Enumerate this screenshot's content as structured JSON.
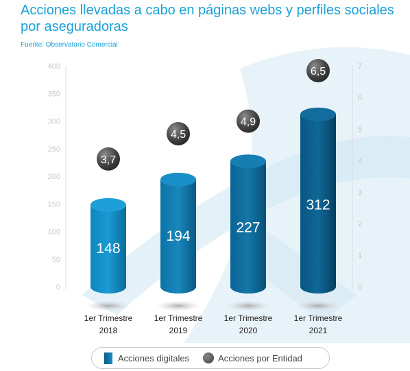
{
  "title": "Acciones llevadas a cabo en páginas webs y perfiles sociales por aseguradoras",
  "source": "Fuente: Observatorio Comercial",
  "chart_data": {
    "type": "bar",
    "categories": [
      {
        "line1": "1er Trimestre",
        "line2": "2018"
      },
      {
        "line1": "1er Trimestre",
        "line2": "2019"
      },
      {
        "line1": "1er Trimestre",
        "line2": "2020"
      },
      {
        "line1": "1er Trimestre",
        "line2": "2021"
      }
    ],
    "series": [
      {
        "name": "Acciones digitales",
        "values": [
          148,
          194,
          227,
          312
        ],
        "labels": [
          "148",
          "194",
          "227",
          "312"
        ],
        "axis": "left",
        "color": "#0f75a8"
      },
      {
        "name": "Acciones por Entidad",
        "values": [
          3.7,
          4.5,
          4.9,
          6.5
        ],
        "labels": [
          "3,7",
          "4,5",
          "4,9",
          "6,5"
        ],
        "axis": "right",
        "color": "#3d3d3d"
      }
    ],
    "y_left": {
      "min": 0,
      "max": 400,
      "ticks": [
        0,
        50,
        100,
        150,
        200,
        250,
        300,
        350,
        400
      ]
    },
    "y_right": {
      "min": 0,
      "max": 7,
      "ticks": [
        0,
        1,
        2,
        3,
        4,
        5,
        6,
        7
      ]
    },
    "legend": "bottom"
  }
}
